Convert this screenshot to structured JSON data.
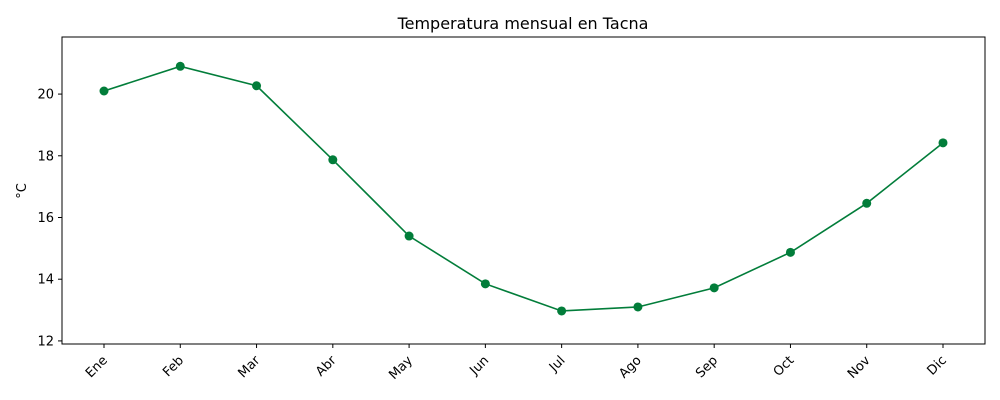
{
  "chart_data": {
    "type": "line",
    "title": "Temperatura mensual en Tacna",
    "xlabel": "",
    "ylabel": "°C",
    "categories": [
      "Ene",
      "Feb",
      "Mar",
      "Abr",
      "May",
      "Jun",
      "Jul",
      "Ago",
      "Sep",
      "Oct",
      "Nov",
      "Dic"
    ],
    "series": [
      {
        "values": [
          20.1,
          20.9,
          20.27,
          17.87,
          15.4,
          13.85,
          12.97,
          13.1,
          13.72,
          14.87,
          16.46,
          18.42
        ]
      }
    ],
    "ylim": [
      11.9,
      21.85
    ],
    "yticks": [
      12,
      14,
      16,
      18,
      20
    ],
    "grid": false,
    "legend": "none",
    "x_tick_rotation": 45,
    "colors": {
      "series": "#027d3a"
    }
  }
}
